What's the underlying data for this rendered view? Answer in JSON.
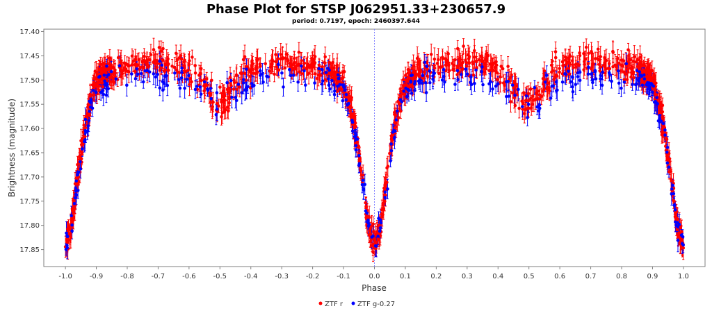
{
  "chart_data": {
    "type": "scatter",
    "title": "Phase Plot for STSP J062951.33+230657.9",
    "subtitle": "period: 0.7197, epoch: 2460397.644",
    "xlabel": "Phase",
    "ylabel": "Brightness (magnitude)",
    "xlim": [
      -1.07,
      1.07
    ],
    "ylim": [
      17.885,
      17.395
    ],
    "y_inverted": true,
    "x_ticks": [
      "-1.0",
      "-0.9",
      "-0.8",
      "-0.7",
      "-0.6",
      "-0.5",
      "-0.4",
      "-0.3",
      "-0.2",
      "-0.1",
      "0.0",
      "0.1",
      "0.2",
      "0.3",
      "0.4",
      "0.5",
      "0.6",
      "0.7",
      "0.8",
      "0.9",
      "1.0"
    ],
    "y_ticks": [
      "17.40",
      "17.45",
      "17.50",
      "17.55",
      "17.60",
      "17.65",
      "17.70",
      "17.75",
      "17.80",
      "17.85"
    ],
    "reference_line_x": 0.0,
    "grid": false,
    "legend_position": "bottom-center",
    "series": [
      {
        "name": "ZTF r",
        "color": "#ff0000",
        "light_curve": {
          "phase": [
            0.0,
            0.02,
            0.04,
            0.06,
            0.08,
            0.1,
            0.14,
            0.2,
            0.3,
            0.38,
            0.44,
            0.48,
            0.5,
            0.52,
            0.56,
            0.62,
            0.7,
            0.8,
            0.86,
            0.9,
            0.92,
            0.94,
            0.96,
            0.98,
            1.0
          ],
          "magnitude": [
            17.84,
            17.8,
            17.7,
            17.61,
            17.55,
            17.51,
            17.48,
            17.47,
            17.46,
            17.47,
            17.5,
            17.54,
            17.55,
            17.54,
            17.5,
            17.47,
            17.46,
            17.47,
            17.48,
            17.5,
            17.55,
            17.61,
            17.7,
            17.8,
            17.84
          ]
        }
      },
      {
        "name": "ZTF g-0.27",
        "color": "#0000ff",
        "light_curve": {
          "phase": [
            0.0,
            0.02,
            0.04,
            0.06,
            0.08,
            0.1,
            0.14,
            0.2,
            0.3,
            0.38,
            0.44,
            0.48,
            0.5,
            0.52,
            0.56,
            0.62,
            0.7,
            0.8,
            0.86,
            0.9,
            0.92,
            0.94,
            0.96,
            0.98,
            1.0
          ],
          "magnitude": [
            17.84,
            17.8,
            17.71,
            17.62,
            17.56,
            17.52,
            17.5,
            17.49,
            17.49,
            17.5,
            17.52,
            17.54,
            17.55,
            17.54,
            17.52,
            17.5,
            17.49,
            17.49,
            17.5,
            17.52,
            17.56,
            17.62,
            17.71,
            17.8,
            17.84
          ]
        }
      }
    ]
  }
}
